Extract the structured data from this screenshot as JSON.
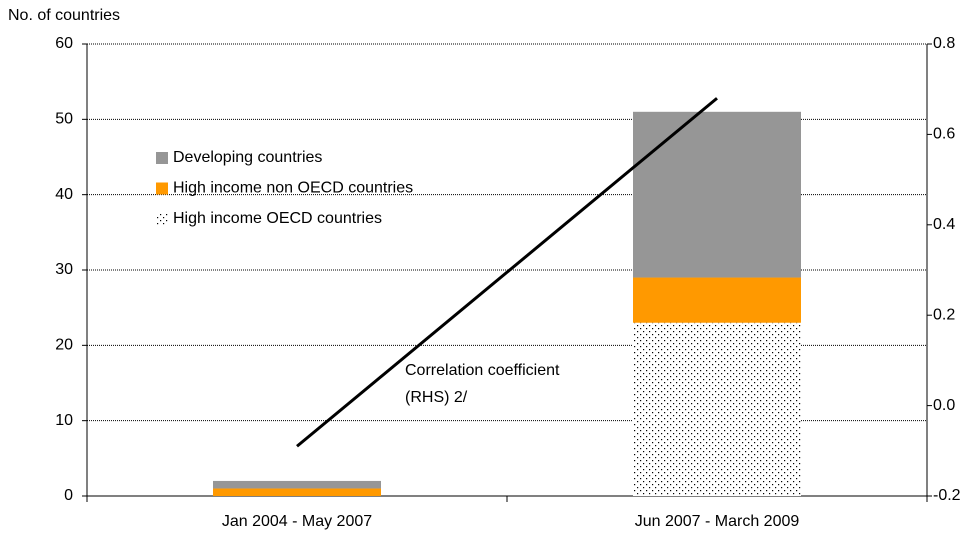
{
  "chart_data": {
    "type": "bar",
    "stacked": true,
    "y_label": "No. of countries",
    "categories": [
      "Jan 2004 - May 2007",
      "Jun 2007 - March 2009"
    ],
    "series": [
      {
        "name": "High income OECD countries",
        "color": "#000000",
        "pattern": "dots",
        "values": [
          0,
          23
        ]
      },
      {
        "name": "High income non OECD countries",
        "color": "#ff9900",
        "values": [
          1,
          6
        ]
      },
      {
        "name": "Developing countries",
        "color": "#969696",
        "values": [
          1,
          22
        ]
      },
      {
        "name": "Correlation coefficient (RHS) 2/",
        "type": "line",
        "axis": "y2",
        "color": "#000000",
        "values": [
          -0.09,
          0.68
        ],
        "in_legend": false
      }
    ],
    "annotation": [
      "Correlation coefficient",
      "(RHS) 2/"
    ],
    "ylim": [
      0,
      60
    ],
    "yticks": [
      0,
      10,
      20,
      30,
      40,
      50,
      60
    ],
    "y2lim": [
      -0.2,
      0.8
    ],
    "y2ticks": [
      -0.2,
      {
        "value": 0,
        "label": "0.0"
      },
      0.2,
      0.4,
      0.6,
      0.8
    ],
    "grid": true,
    "legend": "upper left"
  }
}
